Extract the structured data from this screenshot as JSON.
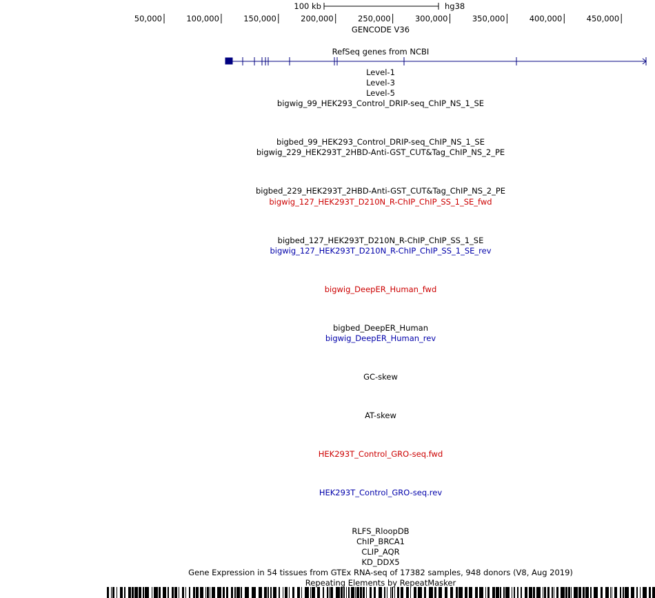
{
  "scale_bar": {
    "label": "100 kb",
    "assembly": "hg38"
  },
  "ruler": {
    "labels": [
      "50,000",
      "100,000",
      "150,000",
      "200,000",
      "250,000",
      "300,000",
      "350,000",
      "400,000",
      "450,000"
    ]
  },
  "tracks": [
    {
      "label": "GENCODE V36",
      "color": "#000000"
    },
    {
      "label": "RefSeq genes from NCBI",
      "color": "#000000"
    },
    {
      "label": "Level-1",
      "color": "#000000"
    },
    {
      "label": "Level-3",
      "color": "#000000"
    },
    {
      "label": "Level-5",
      "color": "#000000"
    },
    {
      "label": "bigwig_99_HEK293_Control_DRIP-seq_ChIP_NS_1_SE",
      "color": "#000000"
    },
    {
      "label": "bigbed_99_HEK293_Control_DRIP-seq_ChIP_NS_1_SE",
      "color": "#000000"
    },
    {
      "label": "bigwig_229_HEK293T_2HBD-Anti-GST_CUT&Tag_ChIP_NS_2_PE",
      "color": "#000000"
    },
    {
      "label": "bigbed_229_HEK293T_2HBD-Anti-GST_CUT&Tag_ChIP_NS_2_PE",
      "color": "#000000"
    },
    {
      "label": "bigwig_127_HEK293T_D210N_R-ChIP_ChIP_SS_1_SE_fwd",
      "color": "#cc0000"
    },
    {
      "label": "bigbed_127_HEK293T_D210N_R-ChIP_ChIP_SS_1_SE",
      "color": "#000000"
    },
    {
      "label": "bigwig_127_HEK293T_D210N_R-ChIP_ChIP_SS_1_SE_rev",
      "color": "#0000aa"
    },
    {
      "label": "bigwig_DeepER_Human_fwd",
      "color": "#cc0000"
    },
    {
      "label": "bigbed_DeepER_Human",
      "color": "#000000"
    },
    {
      "label": "bigwig_DeepER_Human_rev",
      "color": "#0000aa"
    },
    {
      "label": "GC-skew",
      "color": "#000000"
    },
    {
      "label": "AT-skew",
      "color": "#000000"
    },
    {
      "label": "HEK293T_Control_GRO-seq.fwd",
      "color": "#cc0000"
    },
    {
      "label": "HEK293T_Control_GRO-seq.rev",
      "color": "#0000aa"
    },
    {
      "label": "RLFS_RloopDB",
      "color": "#000000"
    },
    {
      "label": "ChIP_BRCA1",
      "color": "#000000"
    },
    {
      "label": "CLIP_AQR",
      "color": "#000000"
    },
    {
      "label": "KD_DDX5",
      "color": "#000000"
    },
    {
      "label": "Gene Expression in 54 tissues from GTEx RNA-seq of 17382 samples, 948 donors (V8, Aug 2019)",
      "color": "#000000"
    },
    {
      "label": "Repeating Elements by RepeatMasker",
      "color": "#000000"
    }
  ]
}
